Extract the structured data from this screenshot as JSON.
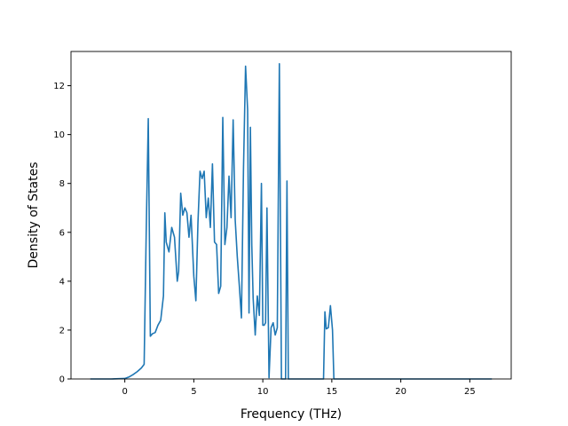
{
  "chart_data": {
    "type": "line",
    "title": "",
    "xlabel": "Frequency (THz)",
    "ylabel": "Density of States",
    "xlim": [
      -3.9,
      28.0
    ],
    "ylim": [
      0,
      13.4
    ],
    "xticks": [
      0,
      5,
      10,
      15,
      20,
      25
    ],
    "yticks": [
      0,
      2,
      4,
      6,
      8,
      10,
      12
    ],
    "grid": false,
    "legend": "none",
    "colors": {
      "line": "#1f77b4",
      "axes": "#000000",
      "background": "#ffffff"
    },
    "series": [
      {
        "x": [
          -2.5,
          -1.0,
          0.0,
          0.3,
          0.6,
          0.9,
          1.2,
          1.4,
          1.55,
          1.7,
          1.85,
          2.0,
          2.2,
          2.4,
          2.6,
          2.8,
          2.9,
          3.0,
          3.2,
          3.4,
          3.6,
          3.8,
          3.9,
          4.05,
          4.2,
          4.35,
          4.5,
          4.65,
          4.8,
          5.0,
          5.15,
          5.3,
          5.45,
          5.6,
          5.75,
          5.9,
          6.05,
          6.2,
          6.35,
          6.5,
          6.65,
          6.8,
          6.95,
          7.1,
          7.25,
          7.4,
          7.55,
          7.7,
          7.85,
          8.0,
          8.15,
          8.3,
          8.45,
          8.6,
          8.75,
          8.9,
          9.0,
          9.1,
          9.2,
          9.3,
          9.45,
          9.6,
          9.75,
          9.9,
          10.0,
          10.1,
          10.2,
          10.3,
          10.45,
          10.6,
          10.75,
          10.9,
          11.05,
          11.2,
          11.35,
          11.5,
          11.6,
          11.65,
          11.75,
          11.85,
          11.95,
          12.05,
          12.15,
          12.25,
          12.35,
          14.4,
          14.5,
          14.6,
          14.75,
          14.9,
          15.05,
          15.15,
          15.25,
          15.35,
          15.45,
          15.6,
          20.0,
          26.6
        ],
        "y": [
          0.0,
          0.0,
          0.02,
          0.08,
          0.18,
          0.3,
          0.45,
          0.6,
          6.0,
          10.65,
          1.75,
          1.85,
          1.9,
          2.2,
          2.4,
          3.4,
          6.8,
          5.6,
          5.2,
          6.2,
          5.8,
          4.0,
          4.4,
          7.6,
          6.7,
          7.0,
          6.8,
          5.8,
          6.7,
          4.2,
          3.2,
          6.4,
          8.5,
          8.2,
          8.5,
          6.6,
          7.4,
          6.2,
          8.8,
          5.6,
          5.5,
          3.5,
          3.8,
          10.7,
          5.5,
          6.2,
          8.3,
          6.6,
          10.6,
          6.5,
          5.0,
          3.8,
          2.5,
          8.6,
          12.8,
          11.0,
          2.7,
          10.3,
          5.5,
          3.3,
          1.8,
          3.4,
          2.6,
          8.0,
          2.2,
          2.2,
          2.3,
          7.0,
          0.05,
          2.1,
          2.3,
          1.8,
          2.1,
          12.9,
          0.0,
          0.0,
          0.0,
          0.0,
          8.1,
          0.0,
          0.0,
          0.0,
          0.0,
          0.0,
          0.0,
          0.0,
          2.75,
          2.05,
          2.1,
          3.0,
          2.0,
          0.0,
          0.0,
          0.0,
          0.0,
          0.0,
          0.0,
          0.0
        ]
      }
    ]
  }
}
